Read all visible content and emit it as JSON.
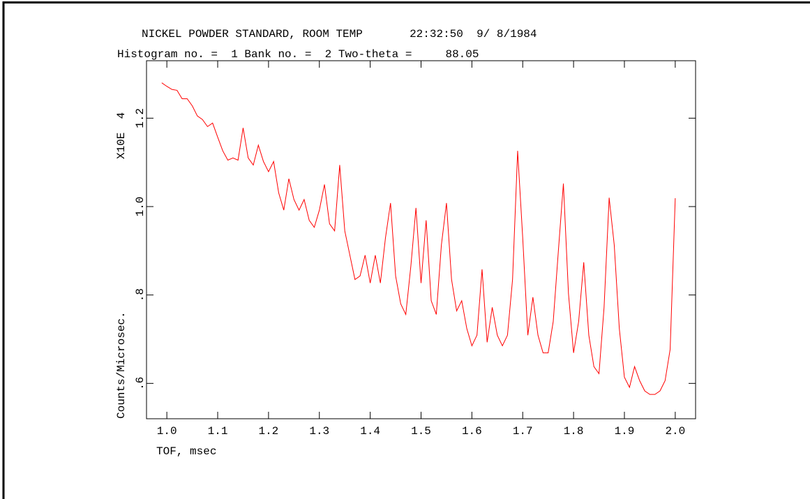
{
  "chart_data": {
    "type": "line",
    "title": "NICKEL POWDER STANDARD, ROOM TEMP       22:32:50  9/ 8/1984",
    "subtitle": "Histogram no. =  1 Bank no. =  2 Two-theta =     88.05",
    "x_label": "TOF, msec",
    "y_label": "Counts/Microsec.",
    "y_scale_label": "X10E  4",
    "xlim": [
      0.96,
      2.04
    ],
    "ylim": [
      0.52,
      1.33
    ],
    "xticks": [
      {
        "value": 1.0,
        "label": "1.0"
      },
      1.1,
      1.2,
      1.3,
      1.4,
      1.5,
      1.6,
      1.7,
      1.8,
      1.9,
      {
        "value": 2.0,
        "label": "2.0"
      }
    ],
    "yticks": [
      {
        "value": 0.6,
        "label": ".6"
      },
      {
        "value": 0.8,
        "label": ".8"
      },
      {
        "value": 1.0,
        "label": "1.0"
      },
      1.2
    ],
    "x": [
      0.99,
      1.0,
      1.01,
      1.02,
      1.03,
      1.04,
      1.05,
      1.06,
      1.07,
      1.08,
      1.09,
      1.1,
      1.11,
      1.12,
      1.13,
      1.14,
      1.15,
      1.16,
      1.17,
      1.18,
      1.19,
      1.2,
      1.21,
      1.22,
      1.23,
      1.24,
      1.25,
      1.26,
      1.27,
      1.28,
      1.29,
      1.3,
      1.31,
      1.32,
      1.33,
      1.34,
      1.35,
      1.36,
      1.37,
      1.38,
      1.39,
      1.4,
      1.41,
      1.42,
      1.43,
      1.44,
      1.45,
      1.46,
      1.47,
      1.48,
      1.49,
      1.5,
      1.51,
      1.52,
      1.53,
      1.54,
      1.55,
      1.56,
      1.57,
      1.58,
      1.59,
      1.6,
      1.61,
      1.62,
      1.63,
      1.64,
      1.65,
      1.66,
      1.67,
      1.68,
      1.69,
      1.7,
      1.71,
      1.72,
      1.73,
      1.74,
      1.75,
      1.76,
      1.77,
      1.78,
      1.79,
      1.8,
      1.81,
      1.82,
      1.83,
      1.84,
      1.85,
      1.86,
      1.87,
      1.88,
      1.89,
      1.9,
      1.91,
      1.92,
      1.93,
      1.94,
      1.95,
      1.96,
      1.97,
      1.98,
      1.99,
      2.0
    ],
    "series": [
      {
        "color": "#ff0000",
        "values": [
          1.28,
          1.272,
          1.265,
          1.263,
          1.244,
          1.244,
          1.228,
          1.205,
          1.197,
          1.181,
          1.189,
          1.157,
          1.126,
          1.105,
          1.11,
          1.105,
          1.178,
          1.11,
          1.094,
          1.139,
          1.102,
          1.079,
          1.102,
          1.031,
          0.992,
          1.063,
          1.016,
          0.992,
          1.016,
          0.969,
          0.953,
          0.992,
          1.05,
          0.961,
          0.945,
          1.094,
          0.945,
          0.89,
          0.835,
          0.843,
          0.89,
          0.827,
          0.89,
          0.827,
          0.929,
          1.008,
          0.843,
          0.78,
          0.756,
          0.866,
          0.997,
          0.827,
          0.969,
          0.787,
          0.756,
          0.913,
          1.008,
          0.835,
          0.764,
          0.787,
          0.724,
          0.685,
          0.709,
          0.858,
          0.693,
          0.772,
          0.709,
          0.685,
          0.709,
          0.835,
          1.126,
          0.929,
          0.709,
          0.795,
          0.709,
          0.669,
          0.669,
          0.74,
          0.898,
          1.052,
          0.803,
          0.669,
          0.74,
          0.874,
          0.709,
          0.638,
          0.622,
          0.772,
          1.02,
          0.913,
          0.724,
          0.614,
          0.591,
          0.638,
          0.606,
          0.583,
          0.575,
          0.575,
          0.583,
          0.606,
          0.677,
          1.019
        ]
      }
    ]
  }
}
